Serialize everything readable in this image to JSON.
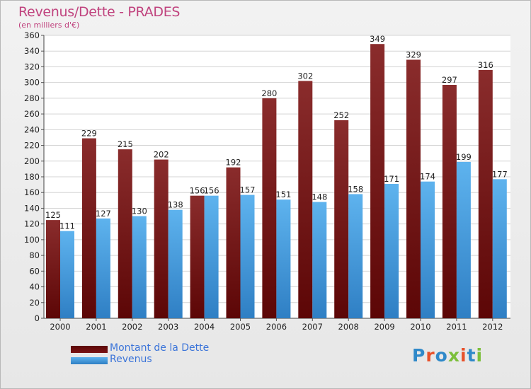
{
  "chart_data": {
    "type": "bar",
    "title": "Revenus/Dette - PRADES",
    "subtitle": "(en milliers d'€)",
    "categories": [
      "2000",
      "2001",
      "2002",
      "2003",
      "2004",
      "2005",
      "2006",
      "2007",
      "2008",
      "2009",
      "2010",
      "2011",
      "2012"
    ],
    "series": [
      {
        "name": "Montant de la Dette",
        "color": "#7a1414",
        "values": [
          125,
          229,
          215,
          202,
          156,
          192,
          280,
          302,
          252,
          349,
          329,
          297,
          316
        ]
      },
      {
        "name": "Revenus",
        "color": "#4aa3e6",
        "values": [
          111,
          127,
          130,
          138,
          156,
          157,
          151,
          148,
          158,
          171,
          174,
          199,
          177
        ]
      }
    ],
    "ylim": [
      0,
      360
    ],
    "ytick_step": 20,
    "grid": true,
    "legend_position": "bottom-left"
  },
  "logo": {
    "text": "Proxiti",
    "colors": [
      "#2f89c9",
      "#e8512a",
      "#2f89c9",
      "#7cbf3b",
      "#e8512a",
      "#2f89c9",
      "#7cbf3b"
    ]
  }
}
